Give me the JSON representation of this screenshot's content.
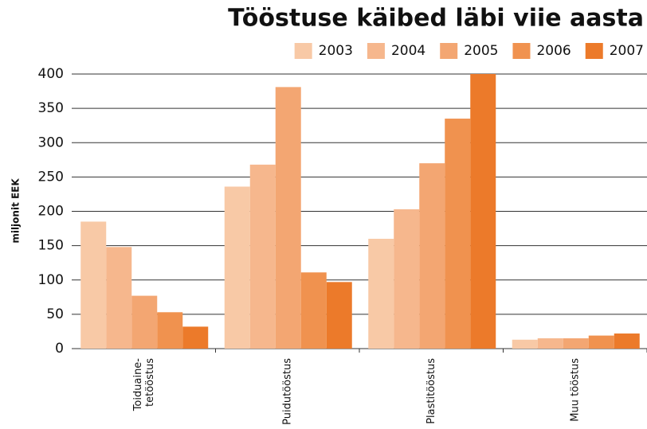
{
  "chart_data": {
    "type": "bar",
    "title": "Tööstuse käibed läbi viie aasta",
    "y_label": "miljonit EEK",
    "categories": [
      "Toiduaine-\ntetööstus",
      "Puidutööstus",
      "Plastitööstus",
      "Muu tööstus"
    ],
    "series": [
      {
        "name": "2003",
        "color": "#f8c9a6",
        "values": [
          185,
          236,
          160,
          13
        ]
      },
      {
        "name": "2004",
        "color": "#f6b78d",
        "values": [
          148,
          268,
          203,
          15
        ]
      },
      {
        "name": "2005",
        "color": "#f3a672",
        "values": [
          77,
          381,
          270,
          15
        ]
      },
      {
        "name": "2006",
        "color": "#f0924f",
        "values": [
          53,
          111,
          335,
          19
        ]
      },
      {
        "name": "2007",
        "color": "#ec7a2a",
        "values": [
          32,
          97,
          400,
          22
        ]
      }
    ],
    "ylim": [
      0,
      400
    ],
    "yticks": [
      0,
      50,
      100,
      150,
      200,
      250,
      300,
      350,
      400
    ],
    "grid": true,
    "legend": "top-right"
  }
}
